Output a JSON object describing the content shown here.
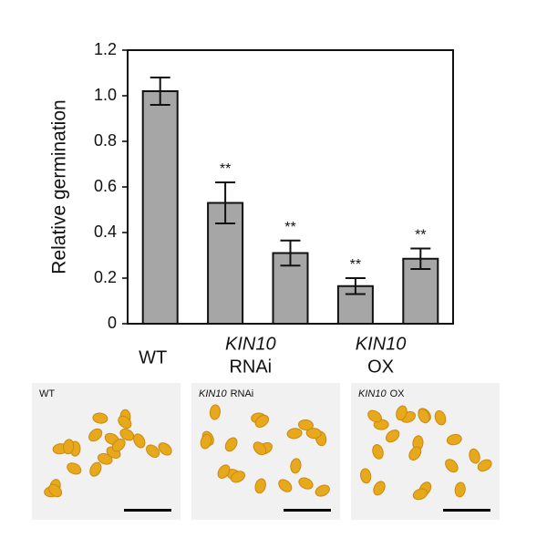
{
  "chart_data": {
    "type": "bar",
    "y_label": "Relative germination",
    "categories": [
      null,
      null,
      null,
      null,
      null
    ],
    "values": [
      1.02,
      0.53,
      0.31,
      0.165,
      0.285
    ],
    "errors": [
      0.06,
      0.09,
      0.055,
      0.035,
      0.045
    ],
    "annotations": [
      null,
      "**",
      "**",
      "**",
      "**"
    ],
    "groups": [
      {
        "line": "WT",
        "size": 1
      },
      {
        "gene": "KIN10",
        "line": "RNAi",
        "size": 2
      },
      {
        "gene": "KIN10",
        "line": "OX",
        "size": 2
      }
    ],
    "color": "#a6a6a6",
    "ylim": [
      0,
      1.2
    ],
    "yticks": [
      0,
      0.2,
      0.4,
      0.6,
      0.8,
      {
        "value": 1,
        "label": "1.0"
      },
      1.2
    ]
  },
  "panels": [
    {
      "line": "WT"
    },
    {
      "gene": "KIN10",
      "line": "RNAi"
    },
    {
      "gene": "KIN10",
      "line": "OX"
    }
  ]
}
